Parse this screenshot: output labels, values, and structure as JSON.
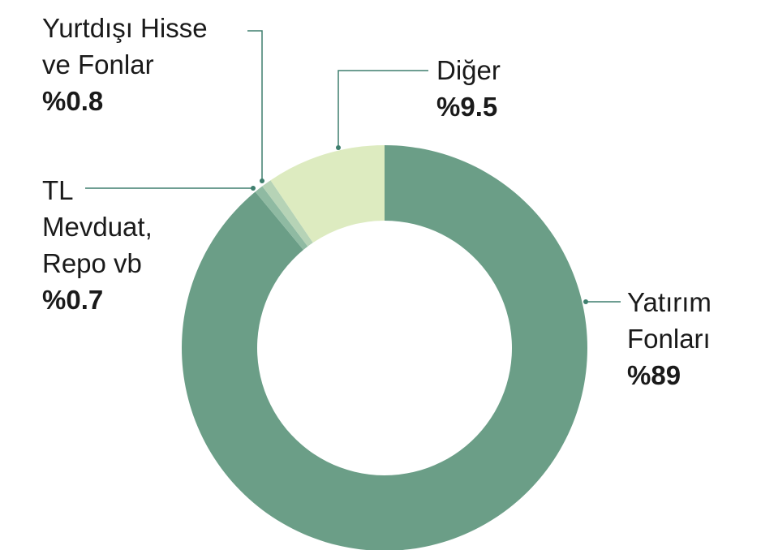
{
  "chart_data": {
    "type": "donut",
    "categories": [
      "Yatırım\nFonları",
      "TL\nMevduat,\nRepo vb",
      "Yurtdışı Hisse\nve Fonlar",
      "Diğer"
    ],
    "values": [
      89,
      0.7,
      0.8,
      9.5
    ],
    "value_labels": [
      "%89",
      "%0.7",
      "%0.8",
      "%9.5"
    ],
    "colors": [
      "#6b9e87",
      "#8fbaa2",
      "#b6d3b6",
      "#ddebc0"
    ]
  }
}
